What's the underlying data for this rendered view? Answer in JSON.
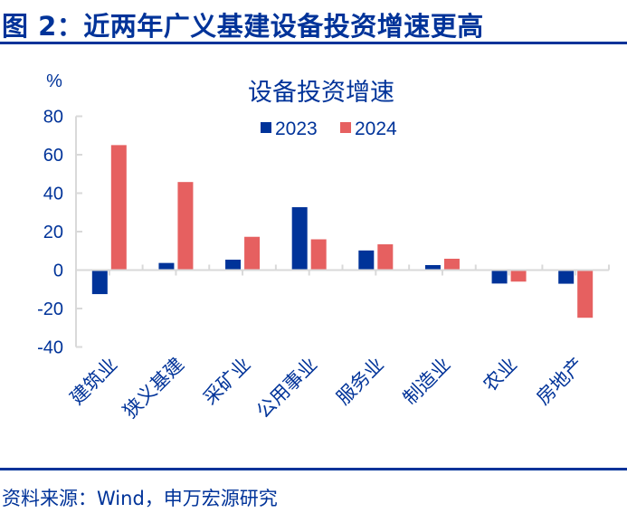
{
  "figure": {
    "title": "图 2：近两年广义基建设备投资增速更高",
    "source": "资料来源：Wind，申万宏源研究"
  },
  "colors": {
    "brand": "#003399",
    "series_2023": "#003399",
    "series_2024": "#E66060",
    "axis": "#D9D9D9"
  },
  "chart_data": {
    "type": "bar",
    "title": "设备投资增速",
    "ylabel": "%",
    "xlabel": "",
    "ylim": [
      -40,
      80
    ],
    "yticks": [
      80,
      60,
      40,
      20,
      0,
      -20,
      -40
    ],
    "grid": false,
    "legend_position": "top-center",
    "categories": [
      "建筑业",
      "狭义基建",
      "采矿业",
      "公用事业",
      "服务业",
      "制造业",
      "农业",
      "房地产"
    ],
    "series": [
      {
        "name": "2023",
        "values": [
          -12.5,
          3.7,
          5.4,
          32.7,
          10.2,
          2.6,
          -7.0,
          -7.1
        ]
      },
      {
        "name": "2024",
        "values": [
          65.0,
          45.8,
          17.3,
          16.0,
          13.4,
          5.9,
          -6.0,
          -24.8
        ]
      }
    ]
  }
}
